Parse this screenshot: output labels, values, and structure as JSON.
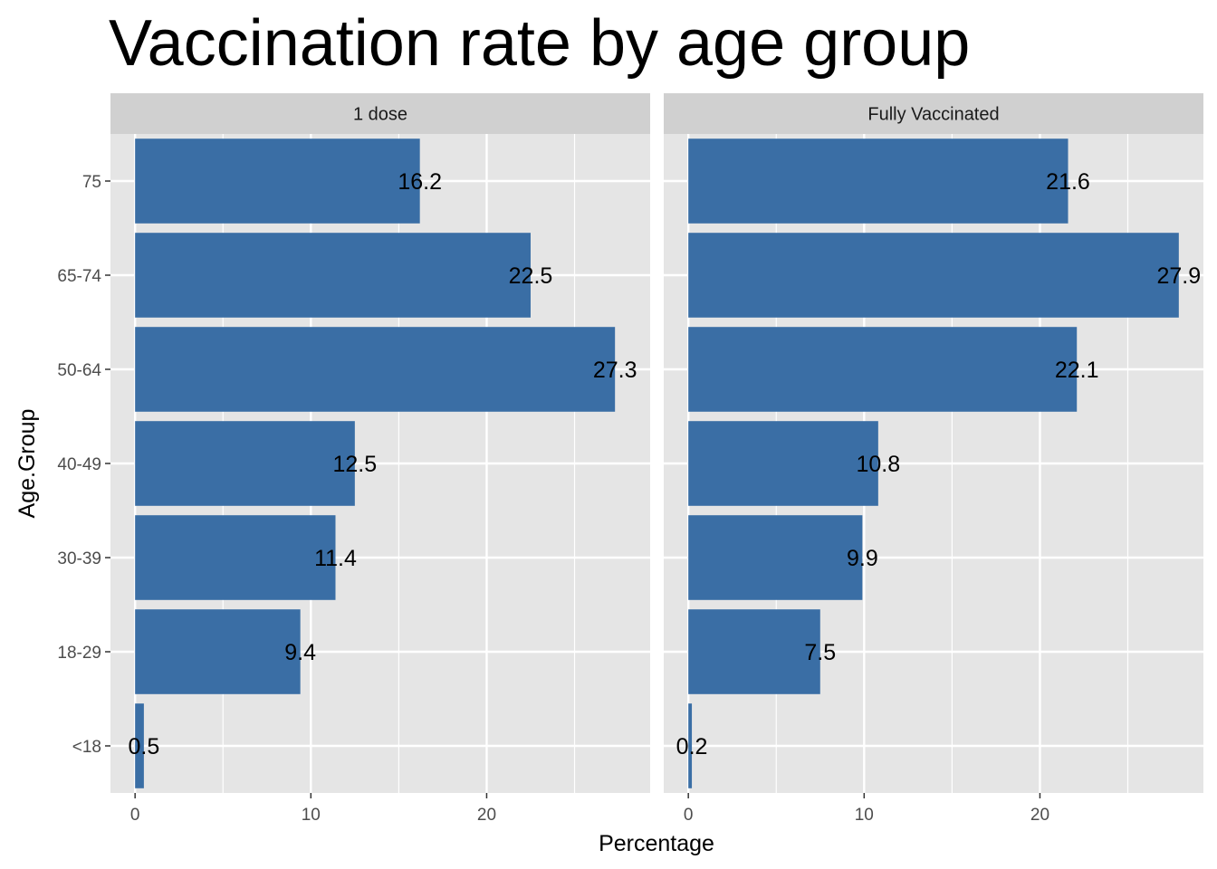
{
  "chart_data": {
    "type": "bar",
    "orientation": "horizontal",
    "title": "Vaccination rate by age group",
    "xlabel": "Percentage",
    "ylabel": "Age.Group",
    "categories": [
      "<18",
      "18-29",
      "30-39",
      "40-49",
      "50-64",
      "65-74",
      "75"
    ],
    "xticks": [
      0,
      10,
      20
    ],
    "bar_color": "#3a6ea5",
    "panel_color": "#e5e5e5",
    "strip_color": "#d0d0d0",
    "grid": true,
    "facets": [
      {
        "name": "1 dose",
        "values": [
          0.5,
          9.4,
          11.4,
          12.5,
          27.3,
          22.5,
          16.2
        ],
        "labels": [
          "0.5",
          "9.4",
          "11.4",
          "12.5",
          "27.3",
          "22.5",
          "16.2"
        ],
        "xlim": [
          -1.4,
          29.3
        ]
      },
      {
        "name": "Fully Vaccinated",
        "values": [
          0.2,
          7.5,
          9.9,
          10.8,
          22.1,
          27.9,
          21.6
        ],
        "labels": [
          "0.2",
          "7.5",
          "9.9",
          "10.8",
          "22.1",
          "27.9",
          "21.6"
        ],
        "xlim": [
          -1.4,
          29.3
        ]
      }
    ]
  }
}
